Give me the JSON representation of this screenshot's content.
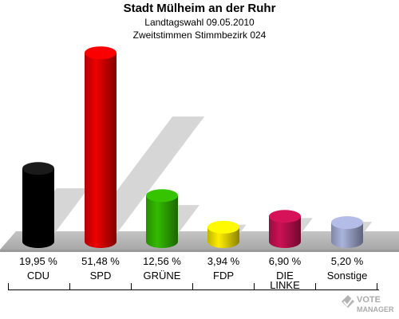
{
  "chart_data": {
    "type": "bar",
    "title": "Stadt Mülheim an der Ruhr",
    "subtitle_1": "Landtagswahl 09.05.2010",
    "subtitle_2": "Zweitstimmen Stimmbezirk 024",
    "categories": [
      "CDU",
      "SPD",
      "GRÜNE",
      "FDP",
      "DIE LINKE",
      "Sonstige"
    ],
    "values": [
      19.95,
      51.48,
      12.56,
      3.94,
      6.9,
      5.2
    ],
    "value_labels": [
      "19,95 %",
      "51,48 %",
      "12,56 %",
      "3,94 %",
      "6,90 %",
      "5,20 %"
    ],
    "colors": [
      "#000000",
      "#ee0000",
      "#33bb00",
      "#ffee00",
      "#cc1155",
      "#aab4dd"
    ],
    "ylim": [
      0,
      55
    ],
    "grid": false,
    "legend": "none"
  },
  "watermark": {
    "text": "VOTE MANAGER",
    "icon": "voting-check-icon"
  }
}
